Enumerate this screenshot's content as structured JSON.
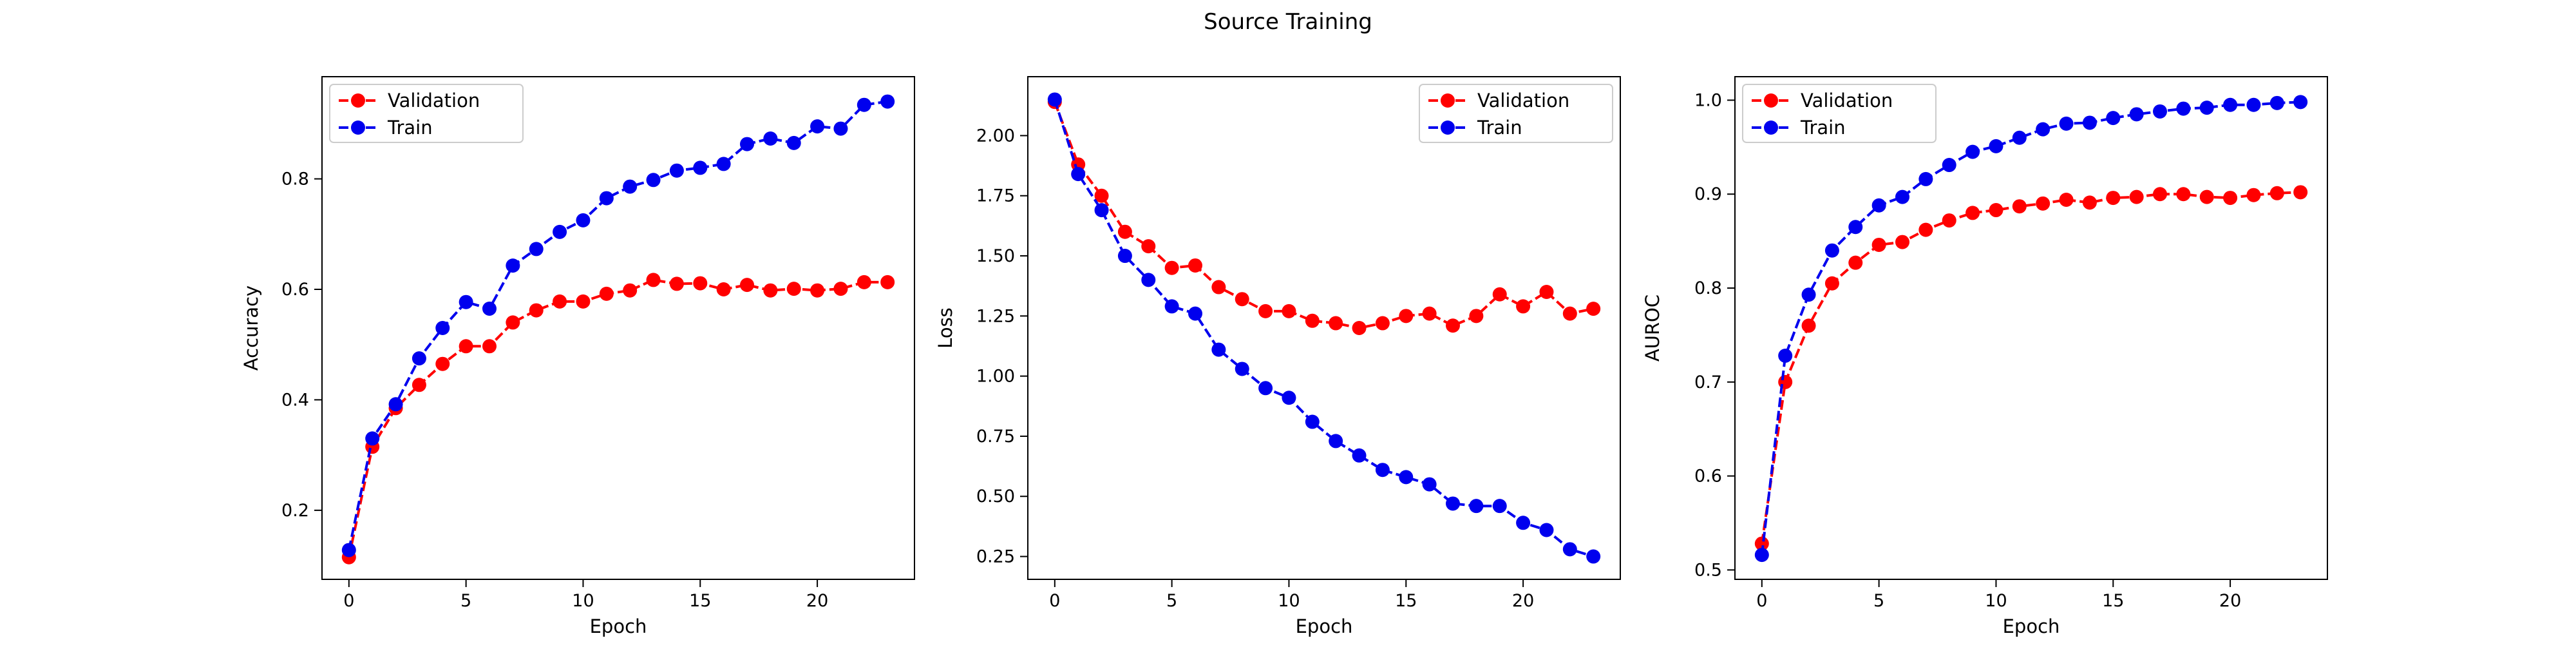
{
  "suptitle": "Source Training",
  "colors": {
    "validation": "#ff0000",
    "train": "#0000ee"
  },
  "chart_data": [
    {
      "type": "line",
      "title": "",
      "xlabel": "Epoch",
      "ylabel": "Accuracy",
      "xlim": [
        -1.15,
        24.15
      ],
      "ylim": [
        0.075,
        0.985
      ],
      "xticks": [
        0,
        5,
        10,
        15,
        20
      ],
      "yticks": [
        0.2,
        0.4,
        0.6,
        0.8
      ],
      "ytick_labels": [
        "0.2",
        "0.4",
        "0.6",
        "0.8"
      ],
      "legend": {
        "placement": "top-left",
        "entries": [
          "Validation",
          "Train"
        ]
      },
      "grid": false,
      "x": [
        0,
        1,
        2,
        3,
        4,
        5,
        6,
        7,
        8,
        9,
        10,
        11,
        12,
        13,
        14,
        15,
        16,
        17,
        18,
        19,
        20,
        21,
        22,
        23
      ],
      "series": [
        {
          "name": "Validation",
          "color": "#ff0000",
          "values": [
            0.115,
            0.315,
            0.385,
            0.427,
            0.465,
            0.497,
            0.497,
            0.54,
            0.562,
            0.578,
            0.578,
            0.592,
            0.598,
            0.617,
            0.61,
            0.611,
            0.6,
            0.608,
            0.598,
            0.601,
            0.598,
            0.601,
            0.613,
            0.613
          ]
        },
        {
          "name": "Train",
          "color": "#0000ee",
          "values": [
            0.128,
            0.33,
            0.392,
            0.475,
            0.53,
            0.577,
            0.565,
            0.643,
            0.673,
            0.704,
            0.725,
            0.765,
            0.786,
            0.798,
            0.815,
            0.82,
            0.827,
            0.863,
            0.873,
            0.865,
            0.895,
            0.891,
            0.934,
            0.94
          ]
        }
      ]
    },
    {
      "type": "line",
      "title": "",
      "xlabel": "Epoch",
      "ylabel": "Loss",
      "xlim": [
        -1.15,
        24.15
      ],
      "ylim": [
        0.155,
        2.245
      ],
      "xticks": [
        0,
        5,
        10,
        15,
        20
      ],
      "yticks": [
        0.25,
        0.5,
        0.75,
        1.0,
        1.25,
        1.5,
        1.75,
        2.0
      ],
      "ytick_labels": [
        "0.25",
        "0.50",
        "0.75",
        "1.00",
        "1.25",
        "1.50",
        "1.75",
        "2.00"
      ],
      "legend": {
        "placement": "top-right",
        "entries": [
          "Validation",
          "Train"
        ]
      },
      "grid": false,
      "x": [
        0,
        1,
        2,
        3,
        4,
        5,
        6,
        7,
        8,
        9,
        10,
        11,
        12,
        13,
        14,
        15,
        16,
        17,
        18,
        19,
        20,
        21,
        22,
        23
      ],
      "series": [
        {
          "name": "Validation",
          "color": "#ff0000",
          "values": [
            2.14,
            1.88,
            1.75,
            1.6,
            1.54,
            1.45,
            1.46,
            1.37,
            1.32,
            1.27,
            1.27,
            1.23,
            1.22,
            1.2,
            1.22,
            1.25,
            1.26,
            1.21,
            1.25,
            1.34,
            1.29,
            1.35,
            1.26,
            1.28
          ]
        },
        {
          "name": "Train",
          "color": "#0000ee",
          "values": [
            2.15,
            1.84,
            1.69,
            1.5,
            1.4,
            1.29,
            1.26,
            1.11,
            1.03,
            0.95,
            0.91,
            0.81,
            0.73,
            0.67,
            0.61,
            0.58,
            0.55,
            0.47,
            0.46,
            0.46,
            0.39,
            0.36,
            0.28,
            0.25
          ]
        }
      ]
    },
    {
      "type": "line",
      "title": "",
      "xlabel": "Epoch",
      "ylabel": "AUROC",
      "xlim": [
        -1.15,
        24.15
      ],
      "ylim": [
        0.49,
        1.025
      ],
      "xticks": [
        0,
        5,
        10,
        15,
        20
      ],
      "yticks": [
        0.5,
        0.6,
        0.7,
        0.8,
        0.9,
        1.0
      ],
      "ytick_labels": [
        "0.5",
        "0.6",
        "0.7",
        "0.8",
        "0.9",
        "1.0"
      ],
      "legend": {
        "placement": "top-left",
        "entries": [
          "Validation",
          "Train"
        ]
      },
      "grid": false,
      "x": [
        0,
        1,
        2,
        3,
        4,
        5,
        6,
        7,
        8,
        9,
        10,
        11,
        12,
        13,
        14,
        15,
        16,
        17,
        18,
        19,
        20,
        21,
        22,
        23
      ],
      "series": [
        {
          "name": "Validation",
          "color": "#ff0000",
          "values": [
            0.528,
            0.7,
            0.76,
            0.805,
            0.827,
            0.846,
            0.849,
            0.862,
            0.872,
            0.88,
            0.883,
            0.887,
            0.89,
            0.894,
            0.891,
            0.896,
            0.897,
            0.9,
            0.9,
            0.897,
            0.896,
            0.899,
            0.901,
            0.902
          ]
        },
        {
          "name": "Train",
          "color": "#0000ee",
          "values": [
            0.516,
            0.728,
            0.793,
            0.84,
            0.865,
            0.888,
            0.897,
            0.916,
            0.931,
            0.945,
            0.951,
            0.96,
            0.969,
            0.975,
            0.976,
            0.981,
            0.985,
            0.988,
            0.991,
            0.992,
            0.995,
            0.995,
            0.997,
            0.998
          ]
        }
      ]
    }
  ]
}
